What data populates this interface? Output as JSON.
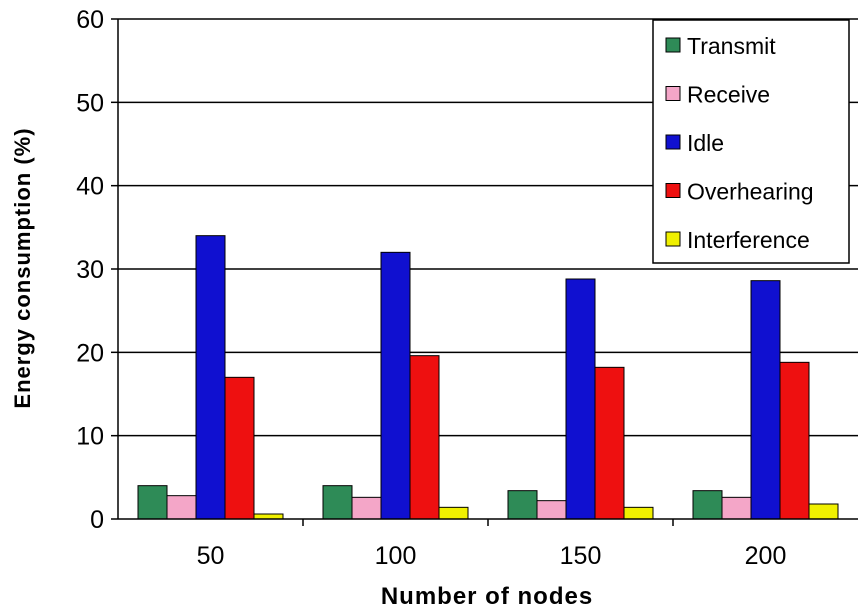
{
  "chart_data": {
    "type": "bar",
    "title": "",
    "xlabel": "Number of nodes",
    "ylabel": "Energy consumption (%)",
    "ylim": [
      0,
      60
    ],
    "yticks": [
      "0",
      "10",
      "20",
      "30",
      "40",
      "50",
      "60"
    ],
    "grid": true,
    "legend_position": "top-right",
    "categories": [
      "50",
      "100",
      "150",
      "200"
    ],
    "series": [
      {
        "name": "Transmit",
        "color": "#2e8b57",
        "values": [
          4.0,
          4.0,
          3.4,
          3.4
        ]
      },
      {
        "name": "Receive",
        "color": "#f4a6c8",
        "values": [
          2.8,
          2.6,
          2.2,
          2.6
        ]
      },
      {
        "name": "Idle",
        "color": "#1010d0",
        "values": [
          34.0,
          32.0,
          28.8,
          28.6
        ]
      },
      {
        "name": "Overhearing",
        "color": "#ee1010",
        "values": [
          17.0,
          19.6,
          18.2,
          18.8
        ]
      },
      {
        "name": "Interference",
        "color": "#f0f000",
        "values": [
          0.6,
          1.4,
          1.4,
          1.8
        ]
      }
    ]
  }
}
